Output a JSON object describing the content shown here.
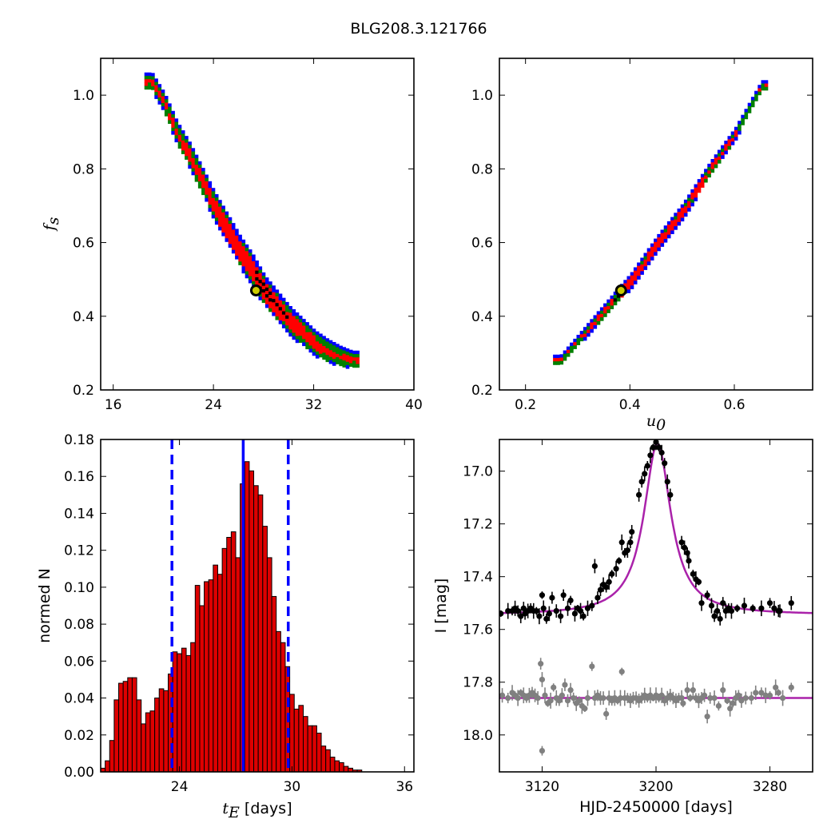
{
  "figure_title": "BLG208.3.121766",
  "colors": {
    "blue": "#0000ff",
    "green": "#008000",
    "red": "#ff0000",
    "black": "#000000",
    "marker_fill": "#cccc00",
    "hist_bar": "#dd0000",
    "model": "#aa22aa",
    "comparison_points": "#808080"
  },
  "chart_data": [
    {
      "id": "fs_vs_tE",
      "type": "heatmap",
      "xlabel": "",
      "ylabel": "f_s",
      "xlim": [
        15,
        40
      ],
      "ylim": [
        0.2,
        1.1
      ],
      "xticks": [
        16,
        24,
        32,
        40
      ],
      "yticks": [
        0.2,
        0.4,
        0.6,
        0.8,
        1.0
      ],
      "ytick_labels": [
        "0.2",
        "0.4",
        "0.6",
        "0.8",
        "1.0"
      ],
      "best_fit": {
        "x": 27.4,
        "y": 0.47
      },
      "ridge": [
        [
          19.0,
          1.04
        ],
        [
          20.0,
          0.98
        ],
        [
          21.0,
          0.9
        ],
        [
          22.0,
          0.84
        ],
        [
          23.0,
          0.77
        ],
        [
          24.0,
          0.7
        ],
        [
          25.0,
          0.64
        ],
        [
          26.0,
          0.58
        ],
        [
          27.0,
          0.53
        ],
        [
          28.0,
          0.47
        ],
        [
          29.0,
          0.43
        ],
        [
          30.0,
          0.39
        ],
        [
          31.0,
          0.36
        ],
        [
          32.0,
          0.33
        ],
        [
          33.0,
          0.31
        ],
        [
          34.0,
          0.295
        ],
        [
          35.0,
          0.285
        ]
      ],
      "confidence_levels": [
        "black",
        "red",
        "green",
        "blue"
      ]
    },
    {
      "id": "fs_vs_u0",
      "type": "heatmap",
      "xlabel": "u_0",
      "ylabel": "",
      "xlim": [
        0.15,
        0.75
      ],
      "ylim": [
        0.2,
        1.1
      ],
      "xticks": [
        0.2,
        0.4,
        0.6
      ],
      "xtick_labels": [
        "0.2",
        "0.4",
        "0.6"
      ],
      "yticks": [
        0.2,
        0.4,
        0.6,
        0.8,
        1.0
      ],
      "ytick_labels": [
        "0.2",
        "0.4",
        "0.6",
        "0.8",
        "1.0"
      ],
      "best_fit": {
        "x": 0.383,
        "y": 0.47
      },
      "ridge": [
        [
          0.265,
          0.285
        ],
        [
          0.3,
          0.34
        ],
        [
          0.35,
          0.42
        ],
        [
          0.4,
          0.5
        ],
        [
          0.45,
          0.6
        ],
        [
          0.5,
          0.69
        ],
        [
          0.55,
          0.8
        ],
        [
          0.6,
          0.9
        ],
        [
          0.65,
          1.03
        ]
      ],
      "confidence_levels": [
        "black",
        "red",
        "green",
        "blue"
      ]
    },
    {
      "id": "tE_histogram",
      "type": "bar",
      "xlabel": "t_E [days]",
      "ylabel": "normed N",
      "xlim": [
        19.8,
        36.5
      ],
      "ylim": [
        0,
        0.18
      ],
      "xticks": [
        24,
        30,
        36
      ],
      "yticks": [
        0.0,
        0.02,
        0.04,
        0.06,
        0.08,
        0.1,
        0.12,
        0.14,
        0.16,
        0.18
      ],
      "ytick_labels": [
        "0.00",
        "0.02",
        "0.04",
        "0.06",
        "0.08",
        "0.10",
        "0.12",
        "0.14",
        "0.16",
        "0.18"
      ],
      "bin_start": 19.8,
      "bin_width": 0.24,
      "values": [
        0.002,
        0.006,
        0.017,
        0.039,
        0.048,
        0.049,
        0.051,
        0.051,
        0.039,
        0.026,
        0.032,
        0.033,
        0.04,
        0.045,
        0.044,
        0.053,
        0.065,
        0.064,
        0.067,
        0.063,
        0.07,
        0.101,
        0.09,
        0.103,
        0.104,
        0.112,
        0.107,
        0.121,
        0.127,
        0.13,
        0.116,
        0.156,
        0.168,
        0.163,
        0.155,
        0.15,
        0.133,
        0.116,
        0.095,
        0.076,
        0.07,
        0.057,
        0.042,
        0.034,
        0.036,
        0.03,
        0.025,
        0.025,
        0.021,
        0.014,
        0.012,
        0.008,
        0.006,
        0.005,
        0.003,
        0.002,
        0.001,
        0.001
      ],
      "median": 27.4,
      "interval": [
        23.6,
        29.8
      ]
    },
    {
      "id": "light_curve",
      "type": "scatter",
      "xlabel": "HJD-2450000 [days]",
      "ylabel": "I [mag]",
      "xlim": [
        3090,
        3310
      ],
      "ylim": [
        18.14,
        16.88
      ],
      "xticks": [
        3120,
        3200,
        3280
      ],
      "yticks": [
        17.0,
        17.2,
        17.4,
        17.6,
        17.8,
        18.0
      ],
      "ytick_labels": [
        "17.0",
        "17.2",
        "17.4",
        "17.6",
        "17.8",
        "18.0"
      ],
      "model": {
        "t0": 3201,
        "baseline": 17.545,
        "peak": 16.895,
        "width": 11.5
      },
      "comparison_baseline": 17.86,
      "series": [
        {
          "values": [
            [
              3091,
              17.54
            ],
            [
              3096,
              17.53
            ],
            [
              3099,
              17.53
            ],
            [
              3101,
              17.52
            ],
            [
              3103,
              17.53
            ],
            [
              3105,
              17.55
            ],
            [
              3107,
              17.52
            ],
            [
              3108,
              17.54
            ],
            [
              3110,
              17.53
            ],
            [
              3112,
              17.52
            ],
            [
              3114,
              17.53
            ],
            [
              3116,
              17.53
            ],
            [
              3118,
              17.55
            ],
            [
              3120,
              17.47
            ],
            [
              3121,
              17.52
            ],
            [
              3123,
              17.56
            ],
            [
              3125,
              17.54
            ],
            [
              3127,
              17.48
            ],
            [
              3130,
              17.53
            ],
            [
              3133,
              17.55
            ],
            [
              3135,
              17.47
            ],
            [
              3138,
              17.52
            ],
            [
              3140,
              17.49
            ],
            [
              3143,
              17.54
            ],
            [
              3145,
              17.52
            ],
            [
              3147,
              17.53
            ],
            [
              3149,
              17.55
            ],
            [
              3152,
              17.52
            ],
            [
              3155,
              17.51
            ],
            [
              3157,
              17.36
            ],
            [
              3159,
              17.48
            ],
            [
              3161,
              17.45
            ],
            [
              3163,
              17.43
            ],
            [
              3165,
              17.44
            ],
            [
              3167,
              17.42
            ],
            [
              3169,
              17.39
            ],
            [
              3172,
              17.37
            ],
            [
              3174,
              17.34
            ],
            [
              3176,
              17.27
            ],
            [
              3178,
              17.31
            ],
            [
              3180,
              17.3
            ],
            [
              3182,
              17.27
            ],
            [
              3183,
              17.23
            ],
            [
              3188,
              17.09
            ],
            [
              3190,
              17.04
            ],
            [
              3192,
              17.01
            ],
            [
              3194,
              16.98
            ],
            [
              3196,
              16.94
            ],
            [
              3198,
              16.91
            ],
            [
              3200,
              16.89
            ],
            [
              3202,
              16.91
            ],
            [
              3204,
              16.93
            ],
            [
              3206,
              16.97
            ],
            [
              3208,
              17.04
            ],
            [
              3210,
              17.09
            ],
            [
              3218,
              17.27
            ],
            [
              3220,
              17.29
            ],
            [
              3222,
              17.31
            ],
            [
              3223,
              17.34
            ],
            [
              3226,
              17.39
            ],
            [
              3228,
              17.41
            ],
            [
              3230,
              17.42
            ],
            [
              3232,
              17.5
            ],
            [
              3236,
              17.47
            ],
            [
              3239,
              17.51
            ],
            [
              3241,
              17.55
            ],
            [
              3243,
              17.53
            ],
            [
              3245,
              17.56
            ],
            [
              3247,
              17.5
            ],
            [
              3249,
              17.53
            ],
            [
              3251,
              17.52
            ],
            [
              3253,
              17.53
            ],
            [
              3257,
              17.52
            ],
            [
              3262,
              17.51
            ],
            [
              3268,
              17.52
            ],
            [
              3274,
              17.52
            ],
            [
              3280,
              17.5
            ],
            [
              3283,
              17.52
            ],
            [
              3286,
              17.53
            ],
            [
              3287,
              17.53
            ],
            [
              3295,
              17.5
            ]
          ]
        },
        {
          "values": [
            [
              3092,
              17.85
            ],
            [
              3096,
              17.86
            ],
            [
              3099,
              17.84
            ],
            [
              3101,
              17.85
            ],
            [
              3103,
              17.86
            ],
            [
              3105,
              17.84
            ],
            [
              3107,
              17.85
            ],
            [
              3109,
              17.86
            ],
            [
              3111,
              17.85
            ],
            [
              3113,
              17.84
            ],
            [
              3115,
              17.85
            ],
            [
              3117,
              17.86
            ],
            [
              3119,
              17.73
            ],
            [
              3120,
              17.79
            ],
            [
              3120,
              18.06
            ],
            [
              3122,
              17.85
            ],
            [
              3124,
              17.88
            ],
            [
              3126,
              17.87
            ],
            [
              3128,
              17.82
            ],
            [
              3130,
              17.86
            ],
            [
              3132,
              17.87
            ],
            [
              3134,
              17.85
            ],
            [
              3136,
              17.81
            ],
            [
              3138,
              17.87
            ],
            [
              3140,
              17.83
            ],
            [
              3142,
              17.86
            ],
            [
              3144,
              17.88
            ],
            [
              3146,
              17.87
            ],
            [
              3148,
              17.89
            ],
            [
              3150,
              17.9
            ],
            [
              3152,
              17.86
            ],
            [
              3155,
              17.74
            ],
            [
              3157,
              17.86
            ],
            [
              3159,
              17.85
            ],
            [
              3161,
              17.86
            ],
            [
              3163,
              17.86
            ],
            [
              3165,
              17.92
            ],
            [
              3167,
              17.86
            ],
            [
              3169,
              17.87
            ],
            [
              3171,
              17.86
            ],
            [
              3173,
              17.87
            ],
            [
              3175,
              17.86
            ],
            [
              3176,
              17.76
            ],
            [
              3178,
              17.86
            ],
            [
              3180,
              17.86
            ],
            [
              3182,
              17.87
            ],
            [
              3184,
              17.86
            ],
            [
              3186,
              17.86
            ],
            [
              3188,
              17.87
            ],
            [
              3190,
              17.86
            ],
            [
              3192,
              17.85
            ],
            [
              3194,
              17.86
            ],
            [
              3196,
              17.85
            ],
            [
              3198,
              17.86
            ],
            [
              3200,
              17.85
            ],
            [
              3202,
              17.86
            ],
            [
              3204,
              17.85
            ],
            [
              3206,
              17.87
            ],
            [
              3208,
              17.86
            ],
            [
              3210,
              17.85
            ],
            [
              3212,
              17.86
            ],
            [
              3214,
              17.87
            ],
            [
              3216,
              17.86
            ],
            [
              3218,
              17.86
            ],
            [
              3219,
              17.88
            ],
            [
              3222,
              17.83
            ],
            [
              3224,
              17.86
            ],
            [
              3226,
              17.83
            ],
            [
              3228,
              17.86
            ],
            [
              3230,
              17.87
            ],
            [
              3232,
              17.86
            ],
            [
              3234,
              17.85
            ],
            [
              3236,
              17.93
            ],
            [
              3238,
              17.86
            ],
            [
              3241,
              17.86
            ],
            [
              3244,
              17.89
            ],
            [
              3247,
              17.83
            ],
            [
              3250,
              17.87
            ],
            [
              3252,
              17.9
            ],
            [
              3254,
              17.88
            ],
            [
              3256,
              17.86
            ],
            [
              3258,
              17.85
            ],
            [
              3260,
              17.87
            ],
            [
              3263,
              17.86
            ],
            [
              3267,
              17.86
            ],
            [
              3270,
              17.84
            ],
            [
              3274,
              17.84
            ],
            [
              3277,
              17.85
            ],
            [
              3280,
              17.85
            ],
            [
              3284,
              17.82
            ],
            [
              3286,
              17.84
            ],
            [
              3289,
              17.86
            ],
            [
              3295,
              17.82
            ]
          ]
        }
      ]
    }
  ]
}
